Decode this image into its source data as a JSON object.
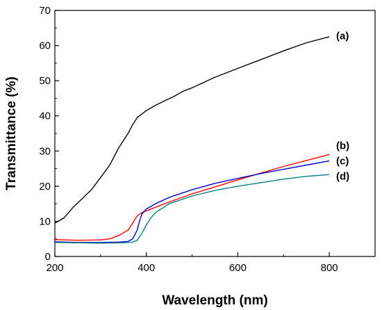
{
  "chart_data": {
    "type": "line",
    "title": "",
    "xlabel": "Wavelength (nm)",
    "ylabel": "Transmittance (%)",
    "xlim": [
      200,
      900
    ],
    "ylim": [
      0,
      70
    ],
    "xticks": [
      200,
      400,
      600,
      800
    ],
    "yticks": [
      0,
      10,
      20,
      30,
      40,
      50,
      60,
      70
    ],
    "grid": false,
    "legend": "none",
    "series": [
      {
        "name": "(a)",
        "color": "#000000",
        "x": [
          200,
          220,
          240,
          260,
          280,
          300,
          320,
          340,
          360,
          370,
          380,
          400,
          420,
          440,
          460,
          480,
          500,
          550,
          600,
          650,
          700,
          750,
          800
        ],
        "y": [
          9.5,
          11,
          14,
          16.5,
          19,
          22.5,
          26,
          31,
          35,
          37.5,
          39.5,
          41.5,
          43,
          44.3,
          45.5,
          47,
          48,
          51,
          53.5,
          56,
          58.5,
          60.8,
          62.5
        ]
      },
      {
        "name": "(b)",
        "color": "#ff0000",
        "x": [
          200,
          250,
          300,
          320,
          340,
          360,
          370,
          380,
          390,
          400,
          420,
          450,
          500,
          550,
          600,
          650,
          700,
          750,
          800
        ],
        "y": [
          4.8,
          4.6,
          4.7,
          5,
          6,
          7.5,
          9.5,
          11.5,
          12.5,
          13,
          14,
          15.5,
          17.8,
          19.8,
          21.8,
          23.7,
          25.6,
          27.3,
          29
        ]
      },
      {
        "name": "(c)",
        "color": "#0000cc",
        "x": [
          200,
          250,
          300,
          340,
          360,
          370,
          380,
          385,
          390,
          400,
          420,
          450,
          500,
          550,
          600,
          650,
          700,
          750,
          800
        ],
        "y": [
          4.2,
          4,
          4,
          4.1,
          4.3,
          5,
          7.5,
          10,
          12,
          13.5,
          15,
          16.8,
          19,
          20.8,
          22.2,
          23.6,
          24.8,
          26,
          27.2
        ]
      },
      {
        "name": "(d)",
        "color": "#008080",
        "x": [
          200,
          250,
          300,
          350,
          370,
          380,
          390,
          400,
          410,
          420,
          450,
          500,
          550,
          600,
          650,
          700,
          750,
          800
        ],
        "y": [
          4,
          3.9,
          3.8,
          3.9,
          4.1,
          4.6,
          6.5,
          9,
          11,
          12.5,
          15,
          17.2,
          18.8,
          20,
          21,
          22,
          22.8,
          23.3
        ]
      }
    ],
    "annotations": [
      {
        "text": "(a)",
        "x": 815,
        "y": 62.8
      },
      {
        "text": "(b)",
        "x": 815,
        "y": 31.5
      },
      {
        "text": "(c)",
        "x": 815,
        "y": 27.2
      },
      {
        "text": "(d)",
        "x": 815,
        "y": 22.8
      }
    ]
  }
}
